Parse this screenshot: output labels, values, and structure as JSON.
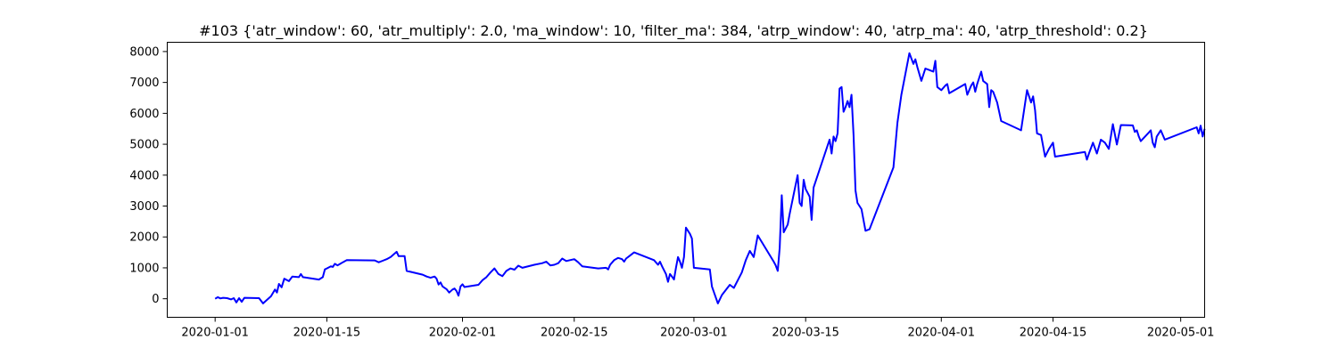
{
  "chart_data": {
    "type": "line",
    "title": "#103 {'atr_window': 60, 'atr_multiply': 2.0, 'ma_window': 10, 'filter_ma': 384, 'atrp_window': 40, 'atrp_ma': 40, 'atrp_threshold': 0.2}",
    "xlabel": "",
    "ylabel": "",
    "x_type": "date",
    "xlim": [
      "2019-12-26",
      "2020-05-04"
    ],
    "ylim": [
      -600,
      8300
    ],
    "x_ticks": [
      "2020-01-01",
      "2020-01-15",
      "2020-02-01",
      "2020-02-15",
      "2020-03-01",
      "2020-03-15",
      "2020-04-01",
      "2020-04-15",
      "2020-05-01"
    ],
    "y_ticks": [
      0,
      1000,
      2000,
      3000,
      4000,
      5000,
      6000,
      7000,
      8000
    ],
    "grid": false,
    "line_color": "#0000ff",
    "series": [
      {
        "points": [
          [
            "2020-01-01",
            0
          ],
          [
            "2020-01-01T08",
            50
          ],
          [
            "2020-01-01T16",
            10
          ],
          [
            "2020-01-02",
            30
          ],
          [
            "2020-01-02T12",
            20
          ],
          [
            "2020-01-03",
            -20
          ],
          [
            "2020-01-03T08",
            20
          ],
          [
            "2020-01-03T16",
            -120
          ],
          [
            "2020-01-04",
            20
          ],
          [
            "2020-01-04T08",
            -100
          ],
          [
            "2020-01-04T16",
            30
          ],
          [
            "2020-01-06T12",
            20
          ],
          [
            "2020-01-07",
            -150
          ],
          [
            "2020-01-08",
            80
          ],
          [
            "2020-01-08T12",
            300
          ],
          [
            "2020-01-08T18",
            200
          ],
          [
            "2020-01-09",
            480
          ],
          [
            "2020-01-09T08",
            370
          ],
          [
            "2020-01-09T16",
            650
          ],
          [
            "2020-01-10T06",
            570
          ],
          [
            "2020-01-10T16",
            720
          ],
          [
            "2020-01-11T12",
            700
          ],
          [
            "2020-01-11T18",
            800
          ],
          [
            "2020-01-12",
            700
          ],
          [
            "2020-01-14",
            620
          ],
          [
            "2020-01-14T12",
            700
          ],
          [
            "2020-01-14T18",
            950
          ],
          [
            "2020-01-15",
            980
          ],
          [
            "2020-01-15T12",
            1050
          ],
          [
            "2020-01-15T18",
            1030
          ],
          [
            "2020-01-16",
            1130
          ],
          [
            "2020-01-16T08",
            1080
          ],
          [
            "2020-01-17",
            1180
          ],
          [
            "2020-01-17T12",
            1250
          ],
          [
            "2020-01-21",
            1240
          ],
          [
            "2020-01-21T12",
            1180
          ],
          [
            "2020-01-22",
            1230
          ],
          [
            "2020-01-22T12",
            1280
          ],
          [
            "2020-01-23",
            1350
          ],
          [
            "2020-01-23T18",
            1520
          ],
          [
            "2020-01-24",
            1380
          ],
          [
            "2020-01-24T18",
            1380
          ],
          [
            "2020-01-25",
            900
          ],
          [
            "2020-01-27",
            780
          ],
          [
            "2020-01-27T12",
            720
          ],
          [
            "2020-01-28",
            680
          ],
          [
            "2020-01-28T12",
            720
          ],
          [
            "2020-01-28T18",
            650
          ],
          [
            "2020-01-29",
            460
          ],
          [
            "2020-01-29T06",
            530
          ],
          [
            "2020-01-29T12",
            400
          ],
          [
            "2020-01-30",
            310
          ],
          [
            "2020-01-30T08",
            200
          ],
          [
            "2020-01-30T18",
            300
          ],
          [
            "2020-01-31",
            330
          ],
          [
            "2020-01-31T06",
            250
          ],
          [
            "2020-01-31T12",
            100
          ],
          [
            "2020-01-31T18",
            400
          ],
          [
            "2020-02-01",
            470
          ],
          [
            "2020-02-01T06",
            380
          ],
          [
            "2020-02-03",
            450
          ],
          [
            "2020-02-03T12",
            600
          ],
          [
            "2020-02-04",
            700
          ],
          [
            "2020-02-04T12",
            850
          ],
          [
            "2020-02-05",
            980
          ],
          [
            "2020-02-05T12",
            800
          ],
          [
            "2020-02-06",
            730
          ],
          [
            "2020-02-06T12",
            900
          ],
          [
            "2020-02-07",
            980
          ],
          [
            "2020-02-07T12",
            940
          ],
          [
            "2020-02-08",
            1070
          ],
          [
            "2020-02-08T12",
            1000
          ],
          [
            "2020-02-10",
            1100
          ],
          [
            "2020-02-11",
            1150
          ],
          [
            "2020-02-11T12",
            1200
          ],
          [
            "2020-02-12",
            1080
          ],
          [
            "2020-02-12T12",
            1100
          ],
          [
            "2020-02-13",
            1150
          ],
          [
            "2020-02-13T12",
            1300
          ],
          [
            "2020-02-14",
            1220
          ],
          [
            "2020-02-15",
            1280
          ],
          [
            "2020-02-15T12",
            1180
          ],
          [
            "2020-02-16",
            1050
          ],
          [
            "2020-02-18",
            980
          ],
          [
            "2020-02-19",
            1000
          ],
          [
            "2020-02-19T06",
            950
          ],
          [
            "2020-02-19T12",
            1100
          ],
          [
            "2020-02-20",
            1250
          ],
          [
            "2020-02-20T12",
            1320
          ],
          [
            "2020-02-21",
            1280
          ],
          [
            "2020-02-21T06",
            1200
          ],
          [
            "2020-02-21T12",
            1300
          ],
          [
            "2020-02-22",
            1400
          ],
          [
            "2020-02-22T12",
            1500
          ],
          [
            "2020-02-25",
            1250
          ],
          [
            "2020-02-25T12",
            1100
          ],
          [
            "2020-02-25T18",
            1200
          ],
          [
            "2020-02-26",
            1050
          ],
          [
            "2020-02-26T12",
            800
          ],
          [
            "2020-02-26T18",
            550
          ],
          [
            "2020-02-27",
            800
          ],
          [
            "2020-02-27T06",
            720
          ],
          [
            "2020-02-27T12",
            620
          ],
          [
            "2020-02-27T18",
            1000
          ],
          [
            "2020-02-28",
            1350
          ],
          [
            "2020-02-28T06",
            1200
          ],
          [
            "2020-02-28T12",
            1000
          ],
          [
            "2020-02-28T18",
            1350
          ],
          [
            "2020-02-29",
            2300
          ],
          [
            "2020-02-29T12",
            2100
          ],
          [
            "2020-02-29T18",
            1950
          ],
          [
            "2020-03-01",
            1000
          ],
          [
            "2020-03-03",
            950
          ],
          [
            "2020-03-03T06",
            400
          ],
          [
            "2020-03-04",
            -150
          ],
          [
            "2020-03-04T12",
            120
          ],
          [
            "2020-03-05T12",
            450
          ],
          [
            "2020-03-06",
            350
          ],
          [
            "2020-03-07",
            850
          ],
          [
            "2020-03-07T12",
            1250
          ],
          [
            "2020-03-08",
            1550
          ],
          [
            "2020-03-08T12",
            1350
          ],
          [
            "2020-03-09",
            2050
          ],
          [
            "2020-03-11",
            1200
          ],
          [
            "2020-03-11T06",
            1080
          ],
          [
            "2020-03-11T12",
            900
          ],
          [
            "2020-03-11T18",
            1650
          ],
          [
            "2020-03-12",
            3350
          ],
          [
            "2020-03-12T06",
            2150
          ],
          [
            "2020-03-12T18",
            2400
          ],
          [
            "2020-03-13",
            2750
          ],
          [
            "2020-03-14",
            4000
          ],
          [
            "2020-03-14T06",
            3100
          ],
          [
            "2020-03-14T12",
            3000
          ],
          [
            "2020-03-14T18",
            3850
          ],
          [
            "2020-03-15",
            3550
          ],
          [
            "2020-03-15T12",
            3300
          ],
          [
            "2020-03-15T18",
            2550
          ],
          [
            "2020-03-16",
            3600
          ],
          [
            "2020-03-18",
            5150
          ],
          [
            "2020-03-18T06",
            4700
          ],
          [
            "2020-03-18T12",
            5250
          ],
          [
            "2020-03-18T18",
            5100
          ],
          [
            "2020-03-19",
            5350
          ],
          [
            "2020-03-19T06",
            6800
          ],
          [
            "2020-03-19T12",
            6850
          ],
          [
            "2020-03-19T18",
            6050
          ],
          [
            "2020-03-20",
            6200
          ],
          [
            "2020-03-20T06",
            6400
          ],
          [
            "2020-03-20T12",
            6200
          ],
          [
            "2020-03-20T18",
            6600
          ],
          [
            "2020-03-21",
            5300
          ],
          [
            "2020-03-21T06",
            3500
          ],
          [
            "2020-03-21T12",
            3100
          ],
          [
            "2020-03-22",
            2900
          ],
          [
            "2020-03-22T12",
            2200
          ],
          [
            "2020-03-23",
            2250
          ],
          [
            "2020-03-26",
            4250
          ],
          [
            "2020-03-26T12",
            5700
          ],
          [
            "2020-03-27",
            6600
          ],
          [
            "2020-03-28",
            7950
          ],
          [
            "2020-03-28T12",
            7600
          ],
          [
            "2020-03-28T18",
            7750
          ],
          [
            "2020-03-29",
            7500
          ],
          [
            "2020-03-29T12",
            7050
          ],
          [
            "2020-03-30",
            7450
          ],
          [
            "2020-03-30T12",
            7400
          ],
          [
            "2020-03-31",
            7350
          ],
          [
            "2020-03-31T06",
            7700
          ],
          [
            "2020-03-31T12",
            6850
          ],
          [
            "2020-04-01",
            6750
          ],
          [
            "2020-04-01T12",
            6900
          ],
          [
            "2020-04-01T18",
            6950
          ],
          [
            "2020-04-02",
            6650
          ],
          [
            "2020-04-04",
            6950
          ],
          [
            "2020-04-04T06",
            6600
          ],
          [
            "2020-04-04T18",
            6900
          ],
          [
            "2020-04-05",
            7000
          ],
          [
            "2020-04-05T06",
            6700
          ],
          [
            "2020-04-05T12",
            6950
          ],
          [
            "2020-04-06",
            7350
          ],
          [
            "2020-04-06T06",
            7050
          ],
          [
            "2020-04-06T18",
            6950
          ],
          [
            "2020-04-07",
            6200
          ],
          [
            "2020-04-07T06",
            6750
          ],
          [
            "2020-04-07T12",
            6700
          ],
          [
            "2020-04-08",
            6350
          ],
          [
            "2020-04-08T12",
            5750
          ],
          [
            "2020-04-11",
            5450
          ],
          [
            "2020-04-11T18",
            6750
          ],
          [
            "2020-04-12",
            6550
          ],
          [
            "2020-04-12T06",
            6350
          ],
          [
            "2020-04-12T12",
            6550
          ],
          [
            "2020-04-12T18",
            6100
          ],
          [
            "2020-04-13",
            5350
          ],
          [
            "2020-04-13T12",
            5300
          ],
          [
            "2020-04-14",
            4600
          ],
          [
            "2020-04-14T12",
            4850
          ],
          [
            "2020-04-15",
            5050
          ],
          [
            "2020-04-15T06",
            4600
          ],
          [
            "2020-04-19",
            4750
          ],
          [
            "2020-04-19T06",
            4500
          ],
          [
            "2020-04-19T12",
            4700
          ],
          [
            "2020-04-20",
            5050
          ],
          [
            "2020-04-20T12",
            4700
          ],
          [
            "2020-04-21",
            5150
          ],
          [
            "2020-04-21T12",
            5050
          ],
          [
            "2020-04-22",
            4850
          ],
          [
            "2020-04-22T12",
            5650
          ],
          [
            "2020-04-23",
            4990
          ],
          [
            "2020-04-23T12",
            5620
          ],
          [
            "2020-04-25",
            5610
          ],
          [
            "2020-04-25T06",
            5400
          ],
          [
            "2020-04-25T12",
            5450
          ],
          [
            "2020-04-25T18",
            5250
          ],
          [
            "2020-04-26",
            5100
          ],
          [
            "2020-04-27",
            5380
          ],
          [
            "2020-04-27T06",
            5450
          ],
          [
            "2020-04-27T12",
            5050
          ],
          [
            "2020-04-27T18",
            4900
          ],
          [
            "2020-04-28",
            5250
          ],
          [
            "2020-04-28T12",
            5450
          ],
          [
            "2020-04-29",
            5150
          ],
          [
            "2020-05-03",
            5550
          ],
          [
            "2020-05-03T06",
            5350
          ],
          [
            "2020-05-03T12",
            5600
          ],
          [
            "2020-05-03T18",
            5250
          ],
          [
            "2020-05-04",
            5500
          ]
        ]
      }
    ]
  }
}
